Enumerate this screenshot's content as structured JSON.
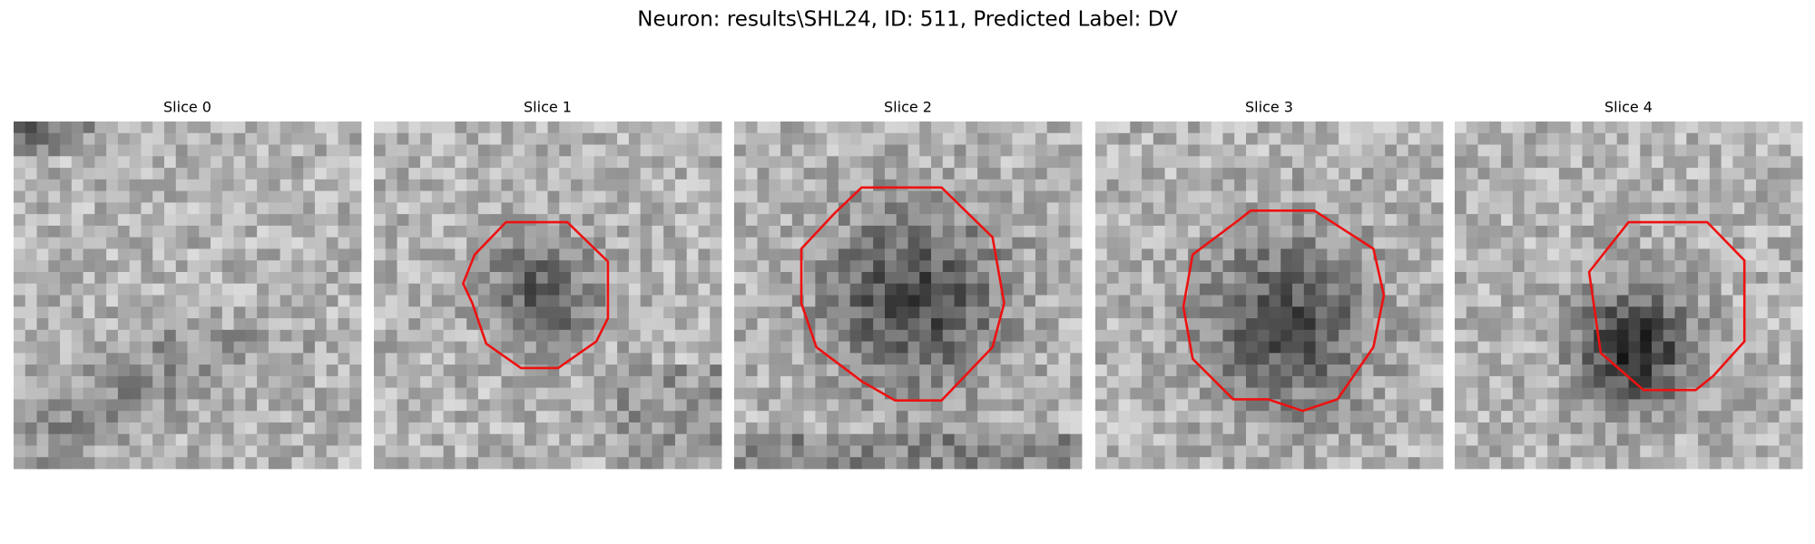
{
  "title": "Neuron: results\\SHL24, ID: 511, Predicted Label: DV",
  "panels": [
    {
      "title": "Slice 0"
    },
    {
      "title": "Slice 1"
    },
    {
      "title": "Slice 2"
    },
    {
      "title": "Slice 3"
    },
    {
      "title": "Slice 4"
    }
  ]
}
